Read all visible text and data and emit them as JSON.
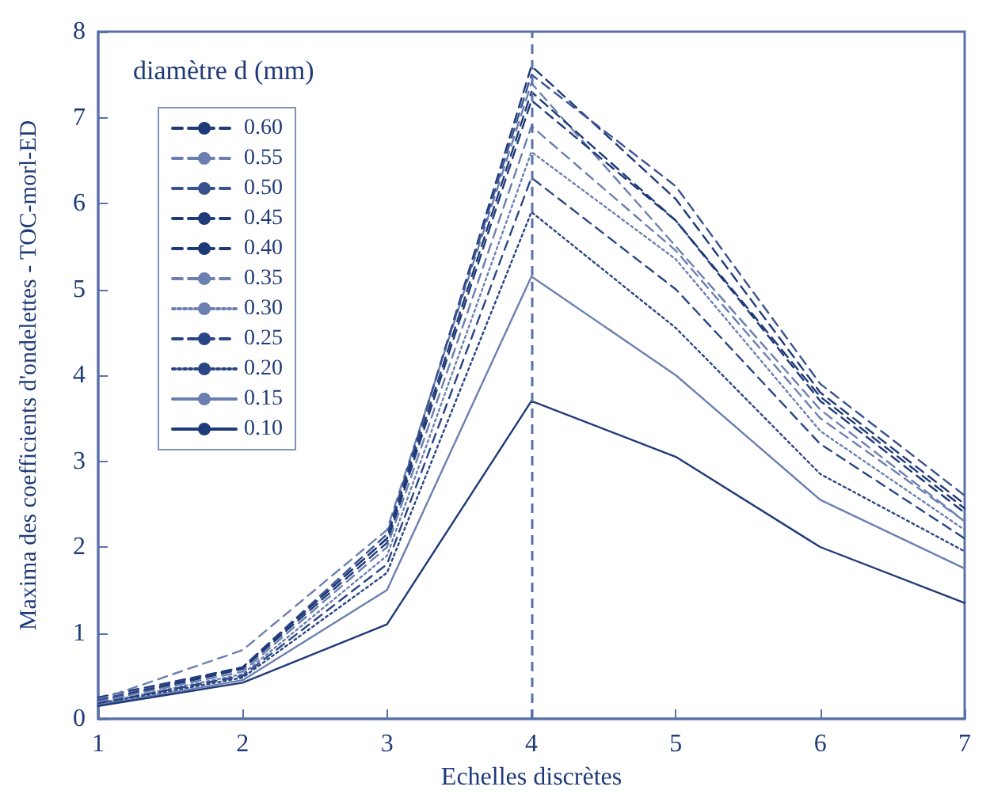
{
  "chart_data": {
    "type": "line",
    "xlabel": "Echelles discrètes",
    "ylabel": "Maxima des coefficients d'ondelettes - TOC-morl-ED",
    "legend_title": "diamètre d (mm)",
    "x": [
      1,
      2,
      3,
      4,
      5,
      6,
      7
    ],
    "xlim": [
      1,
      7
    ],
    "xticks": [
      1,
      2,
      3,
      4,
      5,
      6,
      7
    ],
    "ylim": [
      0,
      8
    ],
    "yticks": [
      0,
      1,
      2,
      3,
      4,
      5,
      6,
      7,
      8
    ],
    "grid": false,
    "legend": "top left",
    "marker": "none",
    "ref_lines": [
      {
        "axis": "x",
        "value": 4,
        "color": "#5a70a8",
        "line_style": "dashed"
      }
    ],
    "series": [
      {
        "name": "0.60",
        "color": "#1f3a78",
        "line_style": "dashed",
        "values": [
          0.25,
          0.6,
          2.1,
          7.6,
          6.05,
          3.8,
          2.5
        ]
      },
      {
        "name": "0.55",
        "color": "#6b80b0",
        "line_style": "dashed",
        "values": [
          0.22,
          0.8,
          2.2,
          7.4,
          5.5,
          3.6,
          2.3
        ]
      },
      {
        "name": "0.50",
        "color": "#3a5290",
        "line_style": "dashed",
        "values": [
          0.22,
          0.6,
          2.15,
          7.5,
          6.2,
          3.9,
          2.6
        ]
      },
      {
        "name": "0.45",
        "color": "#1f3a78",
        "line_style": "dashed",
        "values": [
          0.2,
          0.6,
          2.1,
          7.3,
          5.8,
          3.75,
          2.45
        ]
      },
      {
        "name": "0.40",
        "color": "#1f3a78",
        "line_style": "dashed",
        "values": [
          0.2,
          0.58,
          2.05,
          7.2,
          5.8,
          3.7,
          2.4
        ]
      },
      {
        "name": "0.35",
        "color": "#6b80b0",
        "line_style": "dashed",
        "values": [
          0.2,
          0.55,
          2.0,
          6.9,
          5.45,
          3.5,
          2.3
        ]
      },
      {
        "name": "0.30",
        "color": "#6b80b0",
        "line_style": "dotted",
        "values": [
          0.18,
          0.52,
          1.9,
          6.6,
          5.35,
          3.35,
          2.2
        ]
      },
      {
        "name": "0.25",
        "color": "#2a4585",
        "line_style": "dashed",
        "values": [
          0.18,
          0.5,
          1.8,
          6.3,
          5.0,
          3.2,
          2.1
        ]
      },
      {
        "name": "0.20",
        "color": "#2a4585",
        "line_style": "dotted",
        "values": [
          0.17,
          0.48,
          1.7,
          5.9,
          4.55,
          2.85,
          1.95
        ]
      },
      {
        "name": "0.15",
        "color": "#6b80b0",
        "line_style": "solid",
        "values": [
          0.16,
          0.45,
          1.5,
          5.15,
          4.0,
          2.55,
          1.75
        ]
      },
      {
        "name": "0.10",
        "color": "#1f3a78",
        "line_style": "solid",
        "values": [
          0.15,
          0.42,
          1.1,
          3.7,
          3.05,
          2.0,
          1.35
        ]
      }
    ]
  }
}
